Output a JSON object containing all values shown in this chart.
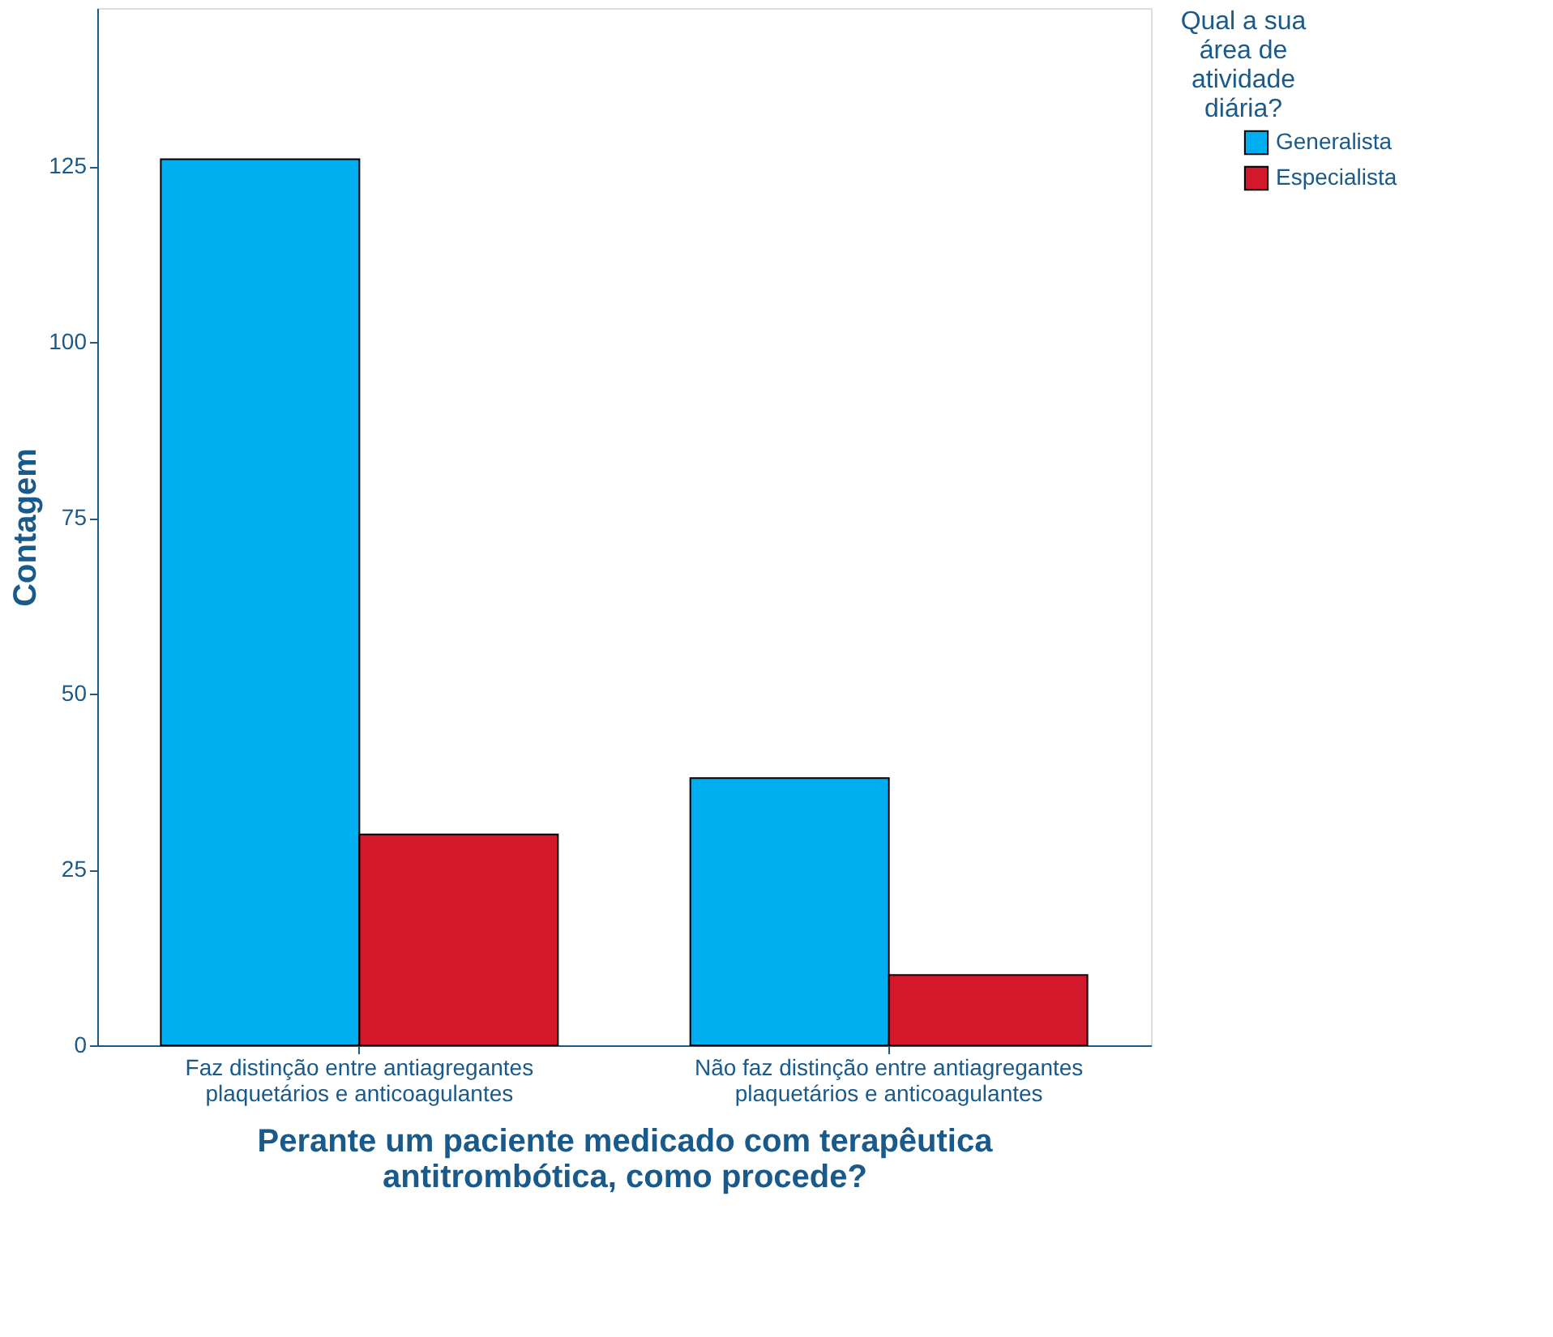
{
  "chart_data": {
    "type": "bar",
    "categories": [
      "Faz distinção entre antiagregantes plaquetários e anticoagulantes",
      "Não faz distinção entre antiagregantes plaquetários e anticoagulantes"
    ],
    "series": [
      {
        "name": "Generalista",
        "color": "#00aeef",
        "values": [
          126,
          38
        ]
      },
      {
        "name": "Especialista",
        "color": "#d3182b",
        "values": [
          30,
          10
        ]
      }
    ],
    "xlabel": "Perante um paciente medicado com terapêutica antitrombótica, como procede?",
    "ylabel": "Contagem",
    "legend_title": "Qual a sua área de atividade diária?",
    "ylim": [
      0,
      147.5
    ],
    "yticks": [
      0,
      25,
      50,
      75,
      100,
      125
    ],
    "grid": false,
    "legend": "top right"
  }
}
